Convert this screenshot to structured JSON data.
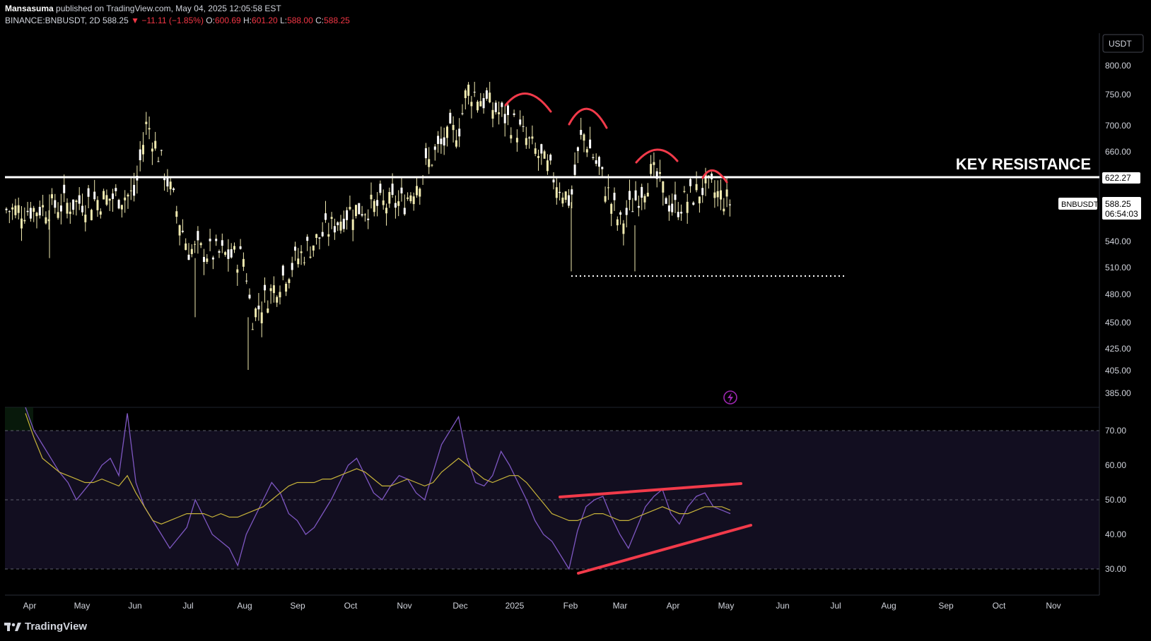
{
  "header": {
    "author": "Mansasuma",
    "published_text": "published on TradingView.com, May 04, 2025 12:05:58 EST",
    "symbol": "BINANCE:BNBUSDT, 2D",
    "last": "588.25",
    "change": "−11.11 (−1.85%)",
    "open_label": "O:",
    "open": "600.69",
    "high_label": "H:",
    "high": "601.20",
    "low_label": "L:",
    "low": "588.00",
    "close_label": "C:",
    "close": "588.25"
  },
  "price_axis": {
    "currency_button": "USDT",
    "ticks": [
      "800.00",
      "750.00",
      "700.00",
      "660.00",
      "622.27",
      "540.00",
      "510.00",
      "480.00",
      "450.00",
      "425.00",
      "405.00",
      "385.00"
    ],
    "resistance_label": "622.27",
    "symbol_label": "BNBUSDT",
    "last_price_label": "588.25",
    "countdown_label": "06:54:03"
  },
  "annotation": {
    "key_resistance": "KEY RESISTANCE"
  },
  "rsi_axis": {
    "ticks": [
      "70.00",
      "60.00",
      "50.00",
      "40.00",
      "30.00"
    ]
  },
  "time_axis": {
    "labels": [
      "Apr",
      "May",
      "Jun",
      "Jul",
      "Aug",
      "Sep",
      "Oct",
      "Nov",
      "Dec",
      "2025",
      "Feb",
      "Mar",
      "Apr",
      "May",
      "Jun",
      "Jul",
      "Aug",
      "Sep",
      "Oct",
      "Nov"
    ]
  },
  "footer": {
    "brand": "TradingView"
  },
  "colors": {
    "background": "#000000",
    "candle": "#f0eab0",
    "resistance": "#ffffff",
    "pattern": "#f23a4a",
    "rsi": "#7e57c2",
    "rsi_ma": "#c8b43a",
    "rsi_band": "#120e20"
  },
  "chart_data": [
    {
      "type": "candlestick",
      "title": "BNBUSDT, 2D",
      "ylim": [
        385,
        800
      ],
      "x_range": [
        "2024-04",
        "2025-11"
      ],
      "resistance_level": 622.27,
      "support_level": 500,
      "last_price": 588.25,
      "pattern": "lower highs under resistance",
      "approx_closes": [
        {
          "date": "2024-04",
          "value": 580
        },
        {
          "date": "2024-05",
          "value": 590
        },
        {
          "date": "2024-06",
          "value": 600
        },
        {
          "date": "2024-06-08",
          "value": 705
        },
        {
          "date": "2024-07",
          "value": 530
        },
        {
          "date": "2024-08",
          "value": 520
        },
        {
          "date": "2024-08-05",
          "value": 455
        },
        {
          "date": "2024-09",
          "value": 520
        },
        {
          "date": "2024-10",
          "value": 580
        },
        {
          "date": "2024-11",
          "value": 590
        },
        {
          "date": "2024-11-20",
          "value": 660
        },
        {
          "date": "2024-12",
          "value": 700
        },
        {
          "date": "2024-12-05",
          "value": 760
        },
        {
          "date": "2025-01",
          "value": 700
        },
        {
          "date": "2025-02",
          "value": 590
        },
        {
          "date": "2025-02-08",
          "value": 690
        },
        {
          "date": "2025-03",
          "value": 560
        },
        {
          "date": "2025-03-20",
          "value": 630
        },
        {
          "date": "2025-04",
          "value": 580
        },
        {
          "date": "2025-04-20",
          "value": 610
        },
        {
          "date": "2025-05-04",
          "value": 588.25
        }
      ]
    },
    {
      "type": "line",
      "title": "RSI",
      "ylim": [
        28,
        73
      ],
      "bands": [
        30,
        50,
        70
      ],
      "series": [
        {
          "values": [
            80,
            70,
            66,
            62,
            58,
            55,
            50,
            53,
            56,
            60,
            62,
            57,
            75,
            55,
            48,
            44,
            40,
            36,
            39,
            42,
            50,
            45,
            40,
            38,
            36,
            31,
            40,
            45,
            50,
            55,
            52,
            46,
            44,
            40,
            42,
            46,
            50,
            55,
            60,
            62,
            57,
            52,
            50,
            54,
            57,
            56,
            52,
            50,
            58,
            66,
            70,
            74,
            62,
            55,
            54,
            57,
            64,
            60,
            55,
            50,
            44,
            40,
            38,
            34,
            30,
            41,
            48,
            50,
            51,
            45,
            40,
            36,
            42,
            48,
            51,
            53,
            46,
            43,
            48,
            51,
            52,
            48,
            47,
            46
          ]
        },
        {
          "values": [
            75,
            68,
            62,
            60,
            58,
            57,
            56,
            55,
            55,
            56,
            55,
            54,
            57,
            52,
            48,
            44,
            43,
            44,
            45,
            46,
            46,
            46,
            45,
            46,
            45,
            45,
            46,
            47,
            48,
            50,
            52,
            54,
            55,
            55,
            55,
            56,
            56,
            57,
            58,
            59,
            58,
            56,
            54,
            54,
            55,
            56,
            55,
            54,
            55,
            58,
            60,
            62,
            60,
            58,
            56,
            55,
            56,
            57,
            57,
            55,
            52,
            49,
            46,
            45,
            44,
            44,
            45,
            46,
            46,
            45,
            44,
            44,
            45,
            46,
            47,
            48,
            47,
            46,
            46,
            47,
            48,
            48,
            48,
            47
          ]
        }
      ]
    }
  ]
}
